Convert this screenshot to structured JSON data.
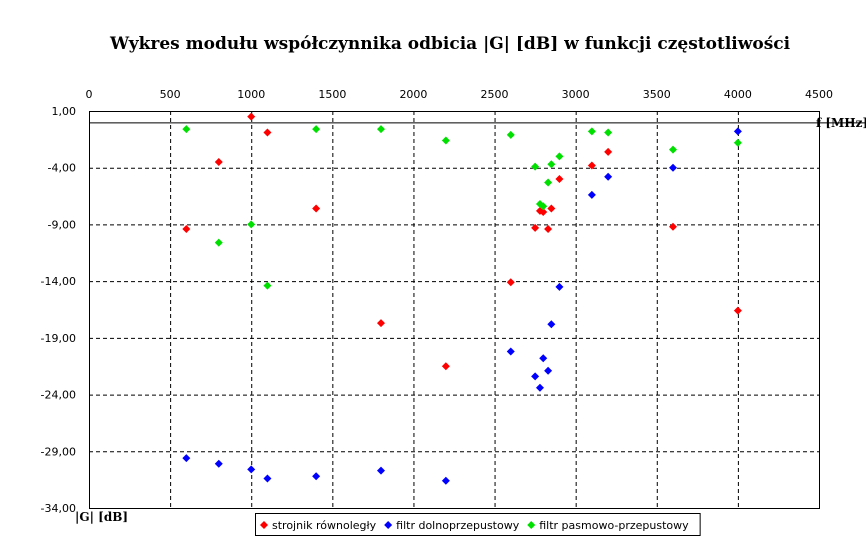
{
  "chart_data": {
    "type": "scatter",
    "title": "Wykres modułu współczynnika odbicia |G| [dB] w funkcji częstotliwości",
    "xlabel": "f [MHz]",
    "ylabel": "|G| [dB]",
    "xlim": [
      0,
      4500
    ],
    "ylim": [
      -34,
      1
    ],
    "x_ticks": [
      0,
      500,
      1000,
      1500,
      2000,
      2500,
      3000,
      3500,
      4000,
      4500
    ],
    "y_ticks": [
      1,
      -4,
      -9,
      -14,
      -19,
      -24,
      -29,
      -34
    ],
    "x_tick_labels": [
      "0",
      "500",
      "1000",
      "1500",
      "2000",
      "2500",
      "3000",
      "3500",
      "4000",
      "4500"
    ],
    "y_tick_labels": [
      "1,00",
      "-4,00",
      "-9,00",
      "-14,00",
      "-19,00",
      "-24,00",
      "-29,00",
      "-34,00"
    ],
    "grid": true,
    "legend_position": "bottom",
    "series": [
      {
        "name": "strojnik równoległy",
        "color": "#ff0000",
        "points": [
          [
            600,
            -9.4
          ],
          [
            800,
            -3.5
          ],
          [
            1000,
            0.5
          ],
          [
            1100,
            -0.9
          ],
          [
            1400,
            -7.6
          ],
          [
            1800,
            -17.7
          ],
          [
            2200,
            -21.5
          ],
          [
            2600,
            -14.1
          ],
          [
            2750,
            -9.3
          ],
          [
            2780,
            -7.8
          ],
          [
            2800,
            -7.9
          ],
          [
            2830,
            -9.4
          ],
          [
            2850,
            -7.6
          ],
          [
            2900,
            -5.0
          ],
          [
            3100,
            -3.8
          ],
          [
            3200,
            -2.6
          ],
          [
            3600,
            -9.2
          ],
          [
            4000,
            -16.6
          ]
        ]
      },
      {
        "name": "filtr dolnoprzepustowy",
        "color": "#0000ff",
        "points": [
          [
            600,
            -29.6
          ],
          [
            800,
            -30.1
          ],
          [
            1000,
            -30.6
          ],
          [
            1100,
            -31.4
          ],
          [
            1400,
            -31.2
          ],
          [
            1800,
            -30.7
          ],
          [
            2200,
            -31.6
          ],
          [
            2600,
            -20.2
          ],
          [
            2750,
            -22.4
          ],
          [
            2780,
            -23.4
          ],
          [
            2800,
            -20.8
          ],
          [
            2830,
            -21.9
          ],
          [
            2850,
            -17.8
          ],
          [
            2900,
            -14.5
          ],
          [
            3100,
            -6.4
          ],
          [
            3200,
            -4.8
          ],
          [
            3600,
            -4.0
          ],
          [
            4000,
            -0.8
          ]
        ]
      },
      {
        "name": "filtr pasmowo-przepustowy",
        "color": "#00e000",
        "points": [
          [
            600,
            -0.6
          ],
          [
            800,
            -10.6
          ],
          [
            1000,
            -9.0
          ],
          [
            1100,
            -14.4
          ],
          [
            1400,
            -0.6
          ],
          [
            1800,
            -0.6
          ],
          [
            2200,
            -1.6
          ],
          [
            2600,
            -1.1
          ],
          [
            2750,
            -3.9
          ],
          [
            2780,
            -7.2
          ],
          [
            2800,
            -7.4
          ],
          [
            2830,
            -5.3
          ],
          [
            2850,
            -3.7
          ],
          [
            2900,
            -3.0
          ],
          [
            3100,
            -0.8
          ],
          [
            3200,
            -0.9
          ],
          [
            3600,
            -2.4
          ],
          [
            4000,
            -1.8
          ]
        ]
      }
    ]
  }
}
